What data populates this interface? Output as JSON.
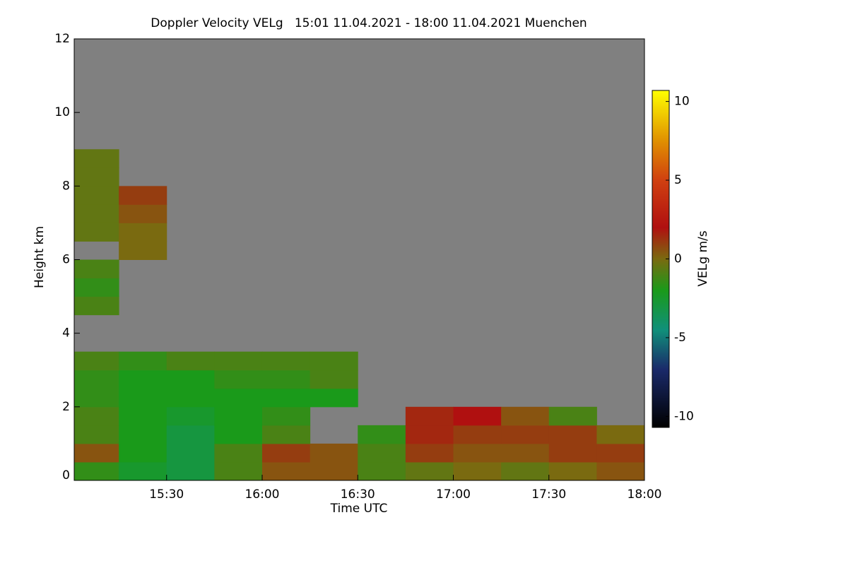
{
  "chart_data": {
    "type": "heatmap",
    "title": "Doppler Velocity VELg   15:01 11.04.2021 - 18:00 11.04.2021 Muenchen",
    "x_label": "Time UTC",
    "y_label": "Height km",
    "colorbar_label": "VELg m/s",
    "x_bins": [
      901,
      915,
      930,
      945,
      960,
      975,
      990,
      1005,
      1020,
      1035,
      1050,
      1065,
      1080
    ],
    "y_bins": [
      0,
      0.5,
      1,
      1.5,
      2,
      2.5,
      3,
      3.5,
      4,
      4.5,
      5,
      5.5,
      6,
      6.5,
      7,
      7.5,
      8,
      8.5,
      9
    ],
    "z": [
      [
        -1.5,
        -2.5,
        -3,
        -1,
        0.5,
        0.5,
        -1,
        -0.5,
        0,
        -0.5,
        0,
        0.5
      ],
      [
        0.5,
        -2,
        -3,
        -1,
        1,
        0.5,
        -1,
        1,
        0.5,
        0.5,
        1,
        1
      ],
      [
        -1,
        -2,
        -3,
        -2,
        -1,
        null,
        -1.5,
        1.5,
        1,
        1,
        1,
        0
      ],
      [
        -1,
        -2,
        -2.5,
        -2,
        -1.5,
        null,
        null,
        1.5,
        2,
        0.5,
        -1,
        null
      ],
      [
        -1.5,
        -2,
        -2,
        -2,
        -2,
        -2,
        null,
        null,
        null,
        null,
        null,
        null
      ],
      [
        -1.5,
        -2,
        -2,
        -1.5,
        -1.5,
        -1,
        null,
        null,
        null,
        null,
        null,
        null
      ],
      [
        -1,
        -1.5,
        -1,
        -1,
        -1,
        -1,
        null,
        null,
        null,
        null,
        null,
        null
      ],
      [
        null,
        null,
        null,
        null,
        null,
        null,
        null,
        null,
        null,
        null,
        null,
        null
      ],
      [
        null,
        null,
        null,
        null,
        null,
        null,
        null,
        null,
        null,
        null,
        null,
        null
      ],
      [
        -1,
        null,
        null,
        null,
        null,
        null,
        null,
        null,
        null,
        null,
        null,
        null
      ],
      [
        -1.5,
        null,
        null,
        null,
        null,
        null,
        null,
        null,
        null,
        null,
        null,
        null
      ],
      [
        -1,
        null,
        null,
        null,
        null,
        null,
        null,
        null,
        null,
        null,
        null,
        null
      ],
      [
        null,
        0,
        null,
        null,
        null,
        null,
        null,
        null,
        null,
        null,
        null,
        null
      ],
      [
        -0.5,
        0,
        null,
        null,
        null,
        null,
        null,
        null,
        null,
        null,
        null,
        null
      ],
      [
        -0.5,
        0.5,
        null,
        null,
        null,
        null,
        null,
        null,
        null,
        null,
        null,
        null
      ],
      [
        -0.5,
        1,
        null,
        null,
        null,
        null,
        null,
        null,
        null,
        null,
        null,
        null
      ],
      [
        -0.5,
        null,
        null,
        null,
        null,
        null,
        null,
        null,
        null,
        null,
        null,
        null
      ],
      [
        -0.5,
        null,
        null,
        null,
        null,
        null,
        null,
        null,
        null,
        null,
        null,
        null
      ]
    ],
    "xlim": [
      901,
      1080
    ],
    "xticks": [
      {
        "value": 930,
        "label": "15:30"
      },
      {
        "value": 960,
        "label": "16:00"
      },
      {
        "value": 990,
        "label": "16:30"
      },
      {
        "value": 1020,
        "label": "17:00"
      },
      {
        "value": 1050,
        "label": "17:30"
      },
      {
        "value": 1080,
        "label": "18:00"
      }
    ],
    "ylim": [
      0,
      12
    ],
    "yticks": [
      0,
      2,
      4,
      6,
      8,
      10,
      12
    ],
    "zlim": [
      -10.7,
      10.7
    ],
    "zticks": [
      -10,
      -5,
      0,
      5,
      10
    ],
    "background_color": "#808080",
    "colorscale": [
      [
        -10.7,
        "#000000"
      ],
      [
        -7,
        "#1a2a6a"
      ],
      [
        -4.5,
        "#10907a"
      ],
      [
        -2,
        "#1a9a1a"
      ],
      [
        0,
        "#7a6a10"
      ],
      [
        2,
        "#b01010"
      ],
      [
        5,
        "#d04010"
      ],
      [
        7.5,
        "#e09000"
      ],
      [
        10.7,
        "#ffff00"
      ]
    ]
  }
}
